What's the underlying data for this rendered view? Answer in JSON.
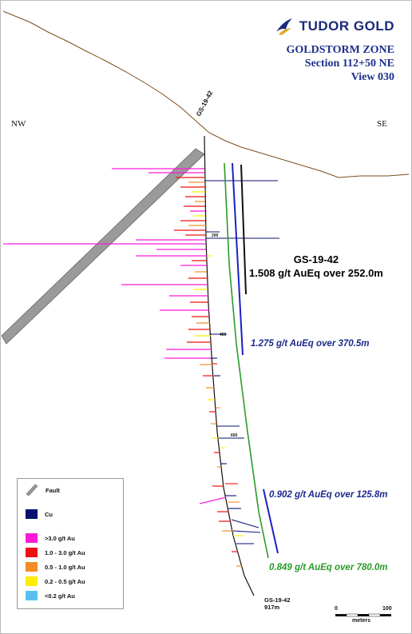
{
  "brand": {
    "name": "TUDOR GOLD"
  },
  "title": {
    "line1": "GOLDSTORM ZONE",
    "line2": "Section 112+50 NE",
    "line3": "View 030"
  },
  "directions": {
    "left": "NW",
    "right": "SE"
  },
  "drillhole": {
    "collar_label": "GS-19-42",
    "summary_title": "GS-19-42",
    "summary_value": "1.508 g/t AuEq over 252.0m",
    "end_name": "GS-19-42",
    "end_depth": "917m",
    "depth_ticks": [
      "200",
      "400",
      "600"
    ]
  },
  "intervals": [
    {
      "text": "1.275 g/t AuEq over 370.5m",
      "color": "#1c2a8c"
    },
    {
      "text": "0.902 g/t AuEq over 125.8m",
      "color": "#1c2a8c"
    },
    {
      "text": "0.849 g/t AuEq over 780.0m",
      "color": "#2a9a2a"
    }
  ],
  "legend": {
    "items": [
      {
        "label": "Fault",
        "icon": "fault-band-icon"
      },
      {
        "label": "Cu",
        "color": "#0b0f6e"
      },
      {
        "label": ">3.0 g/t Au",
        "color": "#ff1ad9"
      },
      {
        "label": "1.0 - 3.0 g/t Au",
        "color": "#ee1111"
      },
      {
        "label": "0.5 - 1.0 g/t Au",
        "color": "#f28c28"
      },
      {
        "label": "0.2 - 0.5 g/t Au",
        "color": "#ffee00"
      },
      {
        "label": "<0.2 g/t Au",
        "color": "#5bc0f0"
      }
    ]
  },
  "scale": {
    "min": "0",
    "max": "100",
    "unit": "meters"
  }
}
